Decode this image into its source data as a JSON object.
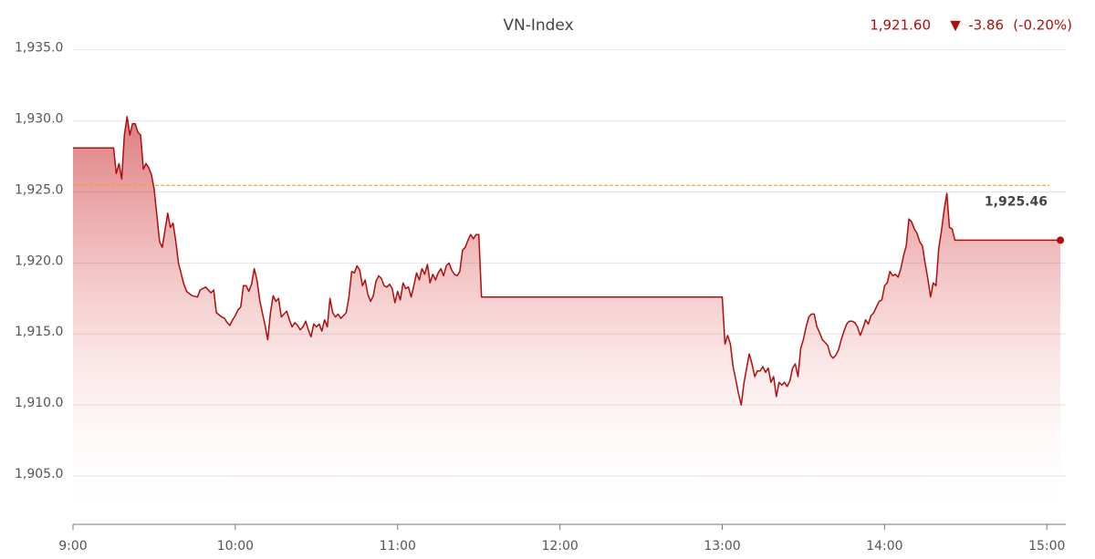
{
  "chart_data": {
    "type": "line",
    "title": "VN-Index",
    "last_value": "1,921.60",
    "change_arrow": "▼",
    "change": "-3.86",
    "change_percent": "(-0.20%)",
    "color": "#b00d0d",
    "reference": {
      "value": 1925.46,
      "label": "1,925.46",
      "color": "#f0a030"
    },
    "xlim": [
      "9:00",
      "15:07"
    ],
    "xticks": [
      "9:00",
      "10:00",
      "11:00",
      "12:00",
      "13:00",
      "14:00",
      "15:00"
    ],
    "ylim": [
      1901.6,
      1935.3
    ],
    "yticks": [
      {
        "value": 1905,
        "label": "1,905.0"
      },
      {
        "value": 1910,
        "label": "1,910.0"
      },
      {
        "value": 1915,
        "label": "1,915.0"
      },
      {
        "value": 1920,
        "label": "1,920.0"
      },
      {
        "value": 1925,
        "label": "1,925.0"
      },
      {
        "value": 1930,
        "label": "1,930.0"
      },
      {
        "value": 1935,
        "label": "1,935.0"
      }
    ],
    "grid": true,
    "x": [
      "9:00",
      "9:15",
      "9:16",
      "9:17",
      "9:18",
      "9:19",
      "9:20",
      "9:21",
      "9:22",
      "9:23",
      "9:24",
      "9:25",
      "9:26",
      "9:27",
      "9:28",
      "9:29",
      "9:30",
      "9:32",
      "9:33",
      "9:35",
      "9:36",
      "9:37",
      "9:38",
      "9:39",
      "9:41",
      "9:42",
      "9:44",
      "9:46",
      "9:47",
      "9:49",
      "9:51",
      "9:52",
      "9:53",
      "9:55",
      "9:56",
      "9:57",
      "9:58",
      "9:59",
      "10:00",
      "10:01",
      "10:02",
      "10:03",
      "10:04",
      "10:05",
      "10:06",
      "10:07",
      "10:08",
      "10:09",
      "10:10",
      "10:11",
      "10:12",
      "10:13",
      "10:14",
      "10:15",
      "10:16",
      "10:17",
      "10:18",
      "10:19",
      "10:20",
      "10:21",
      "10:22",
      "10:23",
      "10:24",
      "10:25",
      "10:26",
      "10:27",
      "10:28",
      "10:29",
      "10:30",
      "10:31",
      "10:32",
      "10:33",
      "10:34",
      "10:35",
      "10:36",
      "10:37",
      "10:38",
      "10:39",
      "10:40",
      "10:41",
      "10:42",
      "10:43",
      "10:44",
      "10:45",
      "10:46",
      "10:47",
      "10:48",
      "10:49",
      "10:50",
      "10:51",
      "10:52",
      "10:53",
      "10:54",
      "10:55",
      "10:56",
      "10:57",
      "10:58",
      "10:59",
      "11:00",
      "11:01",
      "11:02",
      "11:03",
      "11:04",
      "11:05",
      "11:06",
      "11:07",
      "11:08",
      "11:09",
      "11:10",
      "11:11",
      "11:12",
      "11:13",
      "11:14",
      "11:15",
      "11:16",
      "11:17",
      "11:18",
      "11:19",
      "11:20",
      "11:21",
      "11:22",
      "11:23",
      "11:24",
      "11:25",
      "11:26",
      "11:27",
      "11:28",
      "11:29",
      "11:30",
      "11:31",
      "13:00",
      "13:01",
      "13:02",
      "13:03",
      "13:04",
      "13:05",
      "13:06",
      "13:07",
      "13:08",
      "13:09",
      "13:10",
      "13:11",
      "13:12",
      "13:13",
      "13:14",
      "13:15",
      "13:16",
      "13:17",
      "13:18",
      "13:19",
      "13:20",
      "13:21",
      "13:22",
      "13:23",
      "13:24",
      "13:25",
      "13:26",
      "13:27",
      "13:28",
      "13:29",
      "13:30",
      "13:31",
      "13:32",
      "13:33",
      "13:34",
      "13:35",
      "13:36",
      "13:37",
      "13:38",
      "13:39",
      "13:40",
      "13:41",
      "13:42",
      "13:43",
      "13:44",
      "13:45",
      "13:46",
      "13:47",
      "13:48",
      "13:49",
      "13:50",
      "13:51",
      "13:52",
      "13:53",
      "13:54",
      "13:55",
      "13:56",
      "13:57",
      "13:58",
      "13:59",
      "14:00",
      "14:01",
      "14:02",
      "14:03",
      "14:04",
      "14:05",
      "14:06",
      "14:07",
      "14:08",
      "14:09",
      "14:10",
      "14:11",
      "14:12",
      "14:13",
      "14:14",
      "14:15",
      "14:16",
      "14:17",
      "14:18",
      "14:19",
      "14:20",
      "14:21",
      "14:22",
      "14:23",
      "14:24",
      "14:25",
      "14:26",
      "15:05"
    ],
    "values": [
      1928.1,
      1928.1,
      1926.3,
      1927.0,
      1925.9,
      1929.0,
      1930.3,
      1929.0,
      1929.8,
      1929.8,
      1929.2,
      1929.0,
      1926.6,
      1927.0,
      1926.7,
      1926.2,
      1925.2,
      1921.5,
      1921.1,
      1923.5,
      1922.5,
      1922.8,
      1921.5,
      1920.0,
      1918.5,
      1918.0,
      1917.7,
      1917.6,
      1918.1,
      1918.3,
      1917.9,
      1918.1,
      1916.5,
      1916.2,
      1916.1,
      1915.8,
      1915.6,
      1916.0,
      1916.3,
      1916.7,
      1916.9,
      1918.4,
      1918.4,
      1918.0,
      1918.5,
      1919.6,
      1918.8,
      1917.4,
      1916.5,
      1915.6,
      1914.6,
      1916.5,
      1917.7,
      1917.3,
      1917.5,
      1916.2,
      1916.4,
      1916.6,
      1916.0,
      1915.5,
      1915.8,
      1915.6,
      1915.3,
      1915.5,
      1915.9,
      1915.3,
      1914.8,
      1915.7,
      1915.5,
      1915.7,
      1915.2,
      1916.0,
      1915.5,
      1917.5,
      1916.5,
      1916.2,
      1916.4,
      1916.1,
      1916.3,
      1916.5,
      1917.6,
      1919.4,
      1919.3,
      1919.8,
      1919.5,
      1918.4,
      1918.8,
      1917.8,
      1917.3,
      1917.7,
      1918.7,
      1919.1,
      1918.9,
      1918.4,
      1918.3,
      1918.5,
      1918.2,
      1917.2,
      1918.0,
      1917.4,
      1918.6,
      1918.2,
      1918.3,
      1917.6,
      1918.4,
      1919.3,
      1918.8,
      1919.6,
      1919.2,
      1919.9,
      1918.6,
      1919.2,
      1918.8,
      1919.3,
      1919.6,
      1919.1,
      1919.8,
      1920.0,
      1919.5,
      1919.2,
      1919.1,
      1919.4,
      1920.9,
      1921.1,
      1921.6,
      1922.0,
      1921.7,
      1922.0,
      1922.0,
      1917.6,
      1917.6,
      1914.3,
      1914.9,
      1914.3,
      1912.7,
      1911.8,
      1910.8,
      1910.0,
      1911.5,
      1912.6,
      1913.6,
      1912.9,
      1912.0,
      1912.4,
      1912.4,
      1912.7,
      1912.3,
      1912.6,
      1911.6,
      1912.0,
      1910.6,
      1911.6,
      1911.4,
      1911.6,
      1911.3,
      1911.7,
      1912.6,
      1912.9,
      1912.0,
      1914.0,
      1914.6,
      1915.5,
      1916.2,
      1916.4,
      1916.4,
      1915.5,
      1915.1,
      1914.6,
      1914.4,
      1914.2,
      1913.5,
      1913.3,
      1913.5,
      1913.9,
      1914.6,
      1915.2,
      1915.7,
      1915.9,
      1915.9,
      1915.8,
      1915.5,
      1914.9,
      1915.4,
      1916.0,
      1915.7,
      1916.3,
      1916.5,
      1916.9,
      1917.3,
      1917.4,
      1918.4,
      1918.6,
      1919.4,
      1919.1,
      1919.2,
      1919.0,
      1919.6,
      1920.5,
      1921.2,
      1923.1,
      1922.9,
      1922.4,
      1922.1,
      1921.5,
      1921.2,
      1920.0,
      1918.9,
      1917.6,
      1918.6,
      1918.4,
      1921.0,
      1922.2,
      1923.7,
      1924.9,
      1922.5,
      1922.4,
      1921.6,
      1921.6
    ]
  }
}
